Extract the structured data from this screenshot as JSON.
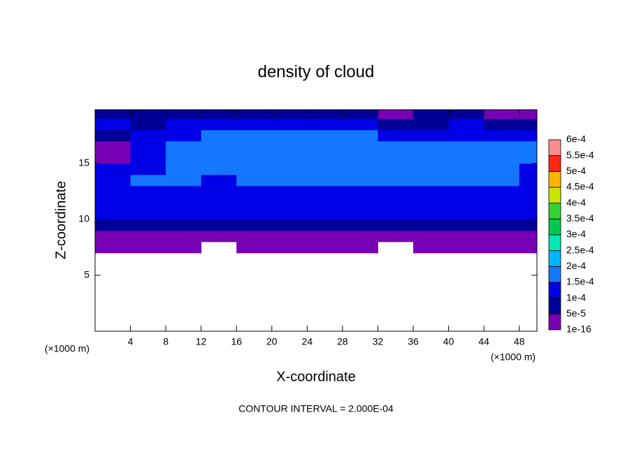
{
  "chart_data": {
    "type": "contour",
    "title": "density of cloud",
    "x_label": "X-coordinate",
    "y_label": "Z-coordinate",
    "x_unit_label": "(×1000 m)",
    "note": "CONTOUR INTERVAL = 2.000E-04",
    "xlim": [
      0,
      50
    ],
    "ylim": [
      0,
      19.8
    ],
    "xticks": [
      4,
      8,
      12,
      16,
      20,
      24,
      28,
      32,
      36,
      40,
      44,
      48
    ],
    "yticks": [
      5,
      10,
      15
    ],
    "x": [
      2,
      6,
      10,
      14,
      18,
      22,
      26,
      30,
      34,
      38,
      42,
      46,
      50
    ],
    "z": [
      7.5,
      8.5,
      9.5,
      10.5,
      11.5,
      12.5,
      13.5,
      14.5,
      15.5,
      16.5,
      17.5,
      18.5,
      19.5
    ],
    "values": [
      [
        2e-05,
        2e-05,
        2e-05,
        null,
        2e-05,
        2e-05,
        2e-05,
        2e-05,
        null,
        2e-05,
        2e-05,
        2e-05,
        2e-05
      ],
      [
        3e-05,
        3e-05,
        3e-05,
        3e-05,
        3e-05,
        3e-05,
        3e-05,
        3e-05,
        3e-05,
        3e-05,
        3e-05,
        3e-05,
        3e-05
      ],
      [
        6e-05,
        6e-05,
        6e-05,
        6e-05,
        6e-05,
        6e-05,
        6e-05,
        6e-05,
        6e-05,
        6e-05,
        6e-05,
        6e-05,
        6e-05
      ],
      [
        0.000105,
        0.000105,
        0.000105,
        0.000105,
        0.000105,
        0.000105,
        0.000105,
        0.000105,
        0.000105,
        0.000105,
        0.000105,
        0.000105,
        0.000105
      ],
      [
        0.00012,
        0.00012,
        0.00012,
        0.00012,
        0.00012,
        0.00012,
        0.00012,
        0.00012,
        0.00012,
        0.00012,
        0.00012,
        0.00012,
        0.00011
      ],
      [
        0.00013,
        0.00014,
        0.00014,
        0.00012,
        0.00013,
        0.00014,
        0.00014,
        0.00014,
        0.00014,
        0.00014,
        0.00014,
        0.00014,
        0.00013
      ],
      [
        0.00014,
        0.00015,
        0.00015,
        0.00014,
        0.00015,
        0.00015,
        0.00015,
        0.00015,
        0.00015,
        0.00015,
        0.00015,
        0.00015,
        0.00014
      ],
      [
        0.0001,
        0.00013,
        0.00015,
        0.00016,
        0.00015,
        0.00015,
        0.00015,
        0.00015,
        0.00015,
        0.00015,
        0.00015,
        0.00015,
        0.00014
      ],
      [
        4e-05,
        0.00011,
        0.00015,
        0.00016,
        0.00016,
        0.00016,
        0.00016,
        0.00016,
        0.00016,
        0.00016,
        0.00016,
        0.00016,
        0.00015
      ],
      [
        4e-05,
        0.00012,
        0.00015,
        0.00016,
        0.00017,
        0.00016,
        0.00016,
        0.00016,
        0.00016,
        0.00016,
        0.00016,
        0.00016,
        0.00015
      ],
      [
        8e-05,
        0.00012,
        0.00014,
        0.00015,
        0.00015,
        0.00015,
        0.00015,
        0.00015,
        0.00014,
        0.00014,
        0.00014,
        0.00013,
        0.00011
      ],
      [
        0.0001,
        9e-05,
        0.00011,
        0.00012,
        0.00012,
        0.00012,
        0.00011,
        0.00011,
        8e-05,
        9e-05,
        0.0001,
        7e-05,
        6e-05
      ],
      [
        6e-05,
        7e-05,
        8e-05,
        9e-05,
        9e-05,
        8e-05,
        7e-05,
        6e-05,
        4e-05,
        5e-05,
        6e-05,
        4e-05,
        3e-05
      ]
    ],
    "colorbar_ticks": [
      1e-16,
      {
        "value": 5e-05,
        "label": "5e-5"
      },
      {
        "value": 0.0001,
        "label": "1e-4"
      },
      {
        "value": 0.00015,
        "label": "1.5e-4"
      },
      {
        "value": 0.0002,
        "label": "2e-4"
      },
      {
        "value": 0.00025,
        "label": "2.5e-4"
      },
      {
        "value": 0.0003,
        "label": "3e-4"
      },
      {
        "value": 0.00035,
        "label": "3.5e-4"
      },
      {
        "value": 0.0004,
        "label": "4e-4"
      },
      {
        "value": 0.00045,
        "label": "4.5e-4"
      },
      {
        "value": 0.0005,
        "label": "5e-4"
      },
      {
        "value": 0.00055,
        "label": "5.5e-4"
      },
      {
        "value": 0.0006,
        "label": "6e-4"
      }
    ],
    "colors": [
      "#7800b4",
      "#000096",
      "#0000e6",
      "#1478ff",
      "#00b4ff",
      "#00e6b4",
      "#00c850",
      "#32d232",
      "#c8e600",
      "#ffb400",
      "#ff2814",
      "#ff8c8c"
    ]
  }
}
